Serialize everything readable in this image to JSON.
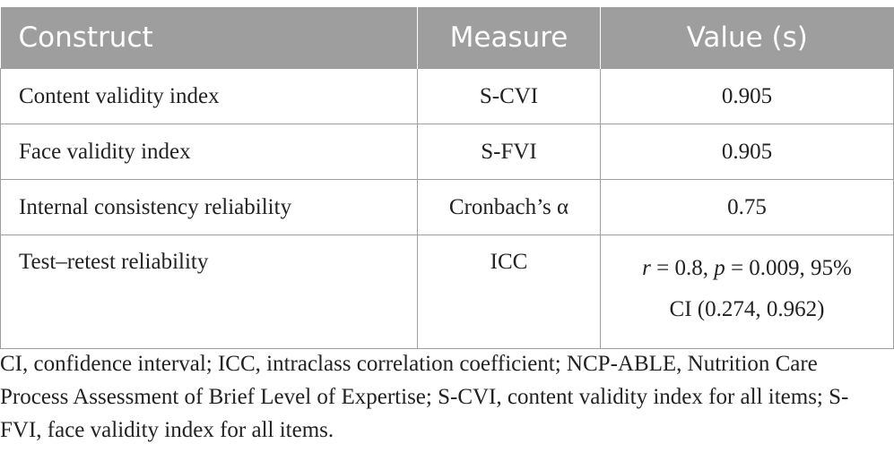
{
  "table": {
    "headers": [
      "Construct",
      "Measure",
      "Value (s)"
    ],
    "rows": [
      {
        "construct": "Content validity index",
        "measure": "S-CVI",
        "value": "0.905"
      },
      {
        "construct": "Face validity index",
        "measure": "S-FVI",
        "value": "0.905"
      },
      {
        "construct": "Internal consistency reliability",
        "measure": "Cronbach’s α",
        "value": "0.75"
      },
      {
        "construct": "Test–retest reliability",
        "measure": "ICC",
        "value_parts": {
          "r_symbol": "r",
          "r_text": " = 0.8, ",
          "p_symbol": "p",
          "p_text": " = 0.009, 95%",
          "ci_text": "CI (0.274, 0.962)"
        }
      }
    ]
  },
  "footnote": "CI, confidence interval; ICC, intraclass correlation coefficient; NCP-ABLE, Nutrition Care Process Assessment of Brief Level of Expertise; S-CVI, content validity index for all items; S-FVI, face validity index for all items."
}
